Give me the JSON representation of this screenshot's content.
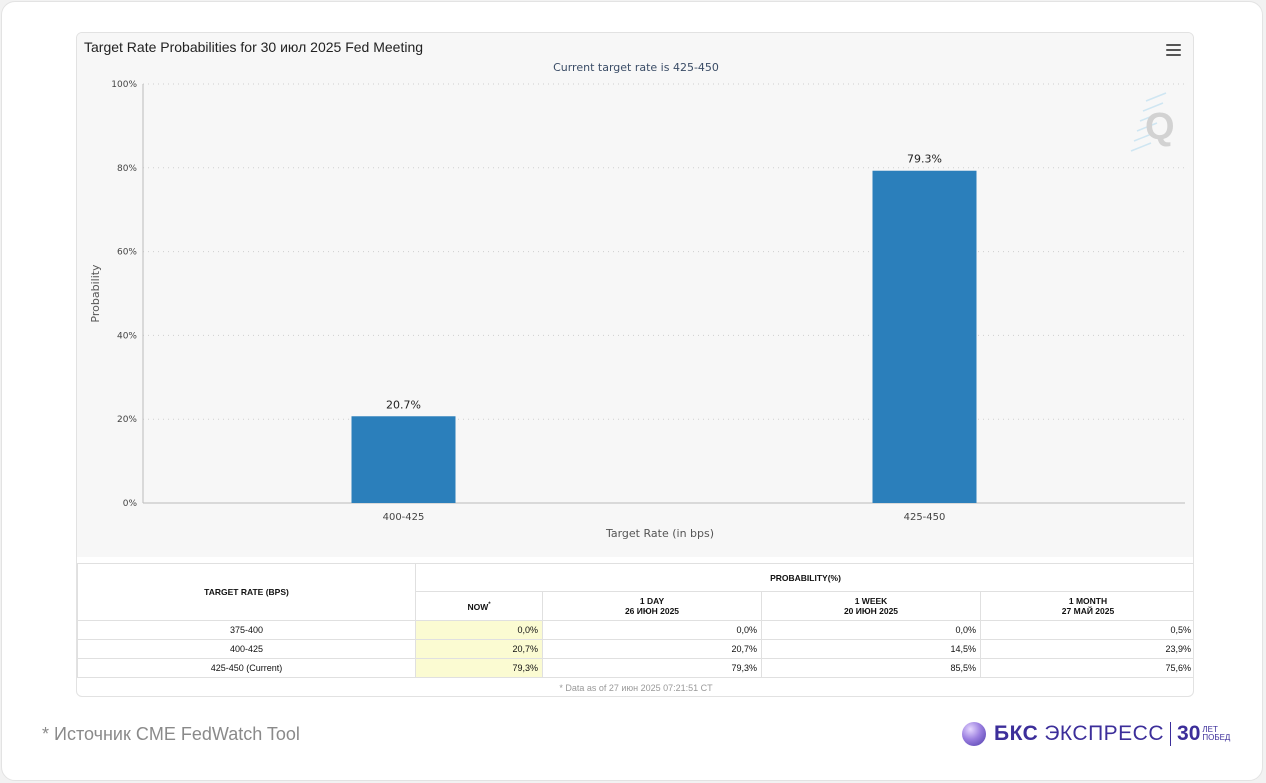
{
  "chart_data": {
    "type": "bar",
    "title": "Target Rate Probabilities for 30 июл 2025 Fed Meeting",
    "subtitle": "Current target rate is 425-450",
    "xlabel": "Target Rate (in bps)",
    "ylabel": "Probability",
    "categories": [
      "400-425",
      "425-450"
    ],
    "values": [
      20.7,
      79.3
    ],
    "data_labels": [
      "20.7%",
      "79.3%"
    ],
    "ylim": [
      0,
      100
    ],
    "yticks": [
      0,
      20,
      40,
      60,
      80,
      100
    ],
    "ytick_labels": [
      "0%",
      "20%",
      "40%",
      "60%",
      "80%",
      "100%"
    ],
    "grid": true,
    "bar_color": "#2b7fbb"
  },
  "table": {
    "col_rate": "TARGET RATE (BPS)",
    "col_prob": "PROBABILITY(%)",
    "sub_now": "NOW",
    "sub_now_mark": "*",
    "sub_1day": "1 DAY",
    "sub_1day_date": "26 ИЮН 2025",
    "sub_1week": "1 WEEK",
    "sub_1week_date": "20 ИЮН 2025",
    "sub_1month": "1 MONTH",
    "sub_1month_date": "27 МАЙ 2025",
    "rows": [
      {
        "rate": "375-400",
        "now": "0,0%",
        "day": "0,0%",
        "week": "0,0%",
        "month": "0,5%"
      },
      {
        "rate": "400-425",
        "now": "20,7%",
        "day": "20,7%",
        "week": "14,5%",
        "month": "23,9%"
      },
      {
        "rate": "425-450 (Current)",
        "now": "79,3%",
        "day": "79,3%",
        "week": "85,5%",
        "month": "75,6%"
      }
    ],
    "footnote": "* Data as of 27 июн 2025 07:21:51 CT"
  },
  "footer": {
    "source": "*  Источник CME FedWatch Tool",
    "brand_bks": "БКС",
    "brand_express": "ЭКСПРЕСС",
    "brand_30": "30",
    "brand_let": "ЛЕТ",
    "brand_pobed": "ПОБЕД"
  },
  "icons": {
    "menu": "hamburger-menu-icon",
    "watermark": "q-watermark-icon",
    "brand": "brand-sphere-icon"
  }
}
